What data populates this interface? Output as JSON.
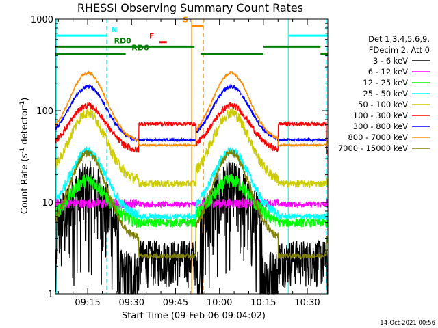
{
  "chart_data": {
    "type": "line",
    "title": "RHESSI Observing Summary Count Rates",
    "xlabel": "Start Time (09-Feb-06 09:04:02)",
    "ylabel_main": "Count Rate (s",
    "ylabel_exp1": "-1",
    "ylabel_mid": " detector",
    "ylabel_exp2": "-1",
    "ylabel_end": ")",
    "yscale": "log",
    "ylim": [
      1,
      1000
    ],
    "xlim_minutes": [
      0,
      93
    ],
    "x_ticks": [
      {
        "minute": 11,
        "label": "09:15"
      },
      {
        "minute": 26,
        "label": "09:30"
      },
      {
        "minute": 41,
        "label": "09:45"
      },
      {
        "minute": 56,
        "label": "10:00"
      },
      {
        "minute": 71,
        "label": "10:15"
      },
      {
        "minute": 86,
        "label": "10:30"
      }
    ],
    "y_ticks": [
      {
        "value": 1,
        "label": "1"
      },
      {
        "value": 10,
        "label": "10"
      },
      {
        "value": 100,
        "label": "100"
      },
      {
        "value": 1000,
        "label": "1000"
      }
    ],
    "legend_header": [
      "Det 1,3,4,5,6,9,",
      "FDecim 2, Att 0"
    ],
    "series": [
      {
        "name": "3 - 6 keV",
        "color": "#000000",
        "shape": "orbit",
        "base": 4.2,
        "amp": 0.55,
        "night_value": 1.6,
        "noise": 0.9,
        "saa_value": 2.5
      },
      {
        "name": "6 - 12 keV",
        "color": "#ff00ff",
        "shape": "flat",
        "base": 9.8,
        "amp": 0.1,
        "noise": 0.12,
        "saa_value": 9.5
      },
      {
        "name": "12 - 25 keV",
        "color": "#00ff00",
        "shape": "orbit",
        "base": 6.2,
        "amp": 0.45,
        "noise": 0.18,
        "saa_value": 6.0
      },
      {
        "name": "25 - 50 keV",
        "color": "#00ffff",
        "shape": "orbit",
        "base": 7.2,
        "amp": 0.7,
        "noise": 0.12,
        "saa_value": 7.0
      },
      {
        "name": "50 - 100 keV",
        "color": "#cccc00",
        "shape": "orbit",
        "base": 17,
        "amp": 0.75,
        "noise": 0.14,
        "saa_value": 16
      },
      {
        "name": "100 - 300 keV",
        "color": "#ff0000",
        "shape": "orbit",
        "base": 36,
        "amp": 0.5,
        "noise": 0.08,
        "saa_value": 72
      },
      {
        "name": "300 - 800 keV",
        "color": "#0000ff",
        "shape": "orbit",
        "base": 46,
        "amp": 0.6,
        "noise": 0.05,
        "saa_value": 48
      },
      {
        "name": "800 - 7000 keV",
        "color": "#ff8c00",
        "shape": "orbit",
        "base": 46,
        "amp": 0.75,
        "noise": 0.04,
        "saa_value": 42
      },
      {
        "name": "7000 - 15000 keV",
        "color": "#808000",
        "shape": "orbit",
        "base": 3.9,
        "amp": 0.95,
        "noise": 0.1,
        "saa_value": 2.6
      }
    ],
    "orbit_peaks_minutes": [
      11,
      60
    ],
    "orbit_width_minutes": 9,
    "saa_intervals_minutes": [
      [
        28.5,
        48
      ],
      [
        76,
        92.5
      ]
    ],
    "annotations": [
      {
        "label": "N",
        "color": "#00ffff",
        "kind": "bar",
        "x_start": 0,
        "x_end": 17.5,
        "level": 660,
        "label_x": 19
      },
      {
        "label": "N",
        "color": "#00ffff",
        "kind": "bar",
        "x_start": 79.5,
        "x_end": 93,
        "level": 660
      },
      {
        "label": "F",
        "color": "#ff0000",
        "kind": "bar",
        "x_start": 35.5,
        "x_end": 38,
        "level": 560,
        "label_x": 32
      },
      {
        "label": "S",
        "color": "#ff8c00",
        "kind": "bar",
        "x_start": 46.5,
        "x_end": 50.5,
        "level": 850,
        "label_x": 43.5
      },
      {
        "label": "RD0",
        "color": "#008000",
        "kind": "bar",
        "x_start": 0,
        "x_end": 23.5,
        "level": 500,
        "label_x": 20
      },
      {
        "label": "RD0",
        "color": "#008000",
        "kind": "bar",
        "x_start": 23.5,
        "x_end": 47.5,
        "level": 500
      },
      {
        "label": "RD6",
        "color": "#008000",
        "kind": "bar",
        "x_start": 0,
        "x_end": 24,
        "level": 420,
        "label_x": 26
      },
      {
        "label": "RD6",
        "color": "#008000",
        "kind": "bar",
        "x_start": 49.5,
        "x_end": 71,
        "level": 420
      },
      {
        "label": "RD0",
        "color": "#008000",
        "kind": "bar",
        "x_start": 71,
        "x_end": 90.5,
        "level": 500
      },
      {
        "label": "RD6",
        "color": "#008000",
        "kind": "bar",
        "x_start": 90.5,
        "x_end": 93,
        "level": 420
      }
    ],
    "vertical_markers": [
      {
        "minute": 0.3,
        "color": "#00ffff",
        "style": "solid"
      },
      {
        "minute": 17.5,
        "color": "#00ffff",
        "style": "dashed"
      },
      {
        "minute": 46.5,
        "color": "#ff8c00",
        "style": "solid"
      },
      {
        "minute": 50.5,
        "color": "#ff8c00",
        "style": "dashed"
      },
      {
        "minute": 79.5,
        "color": "#00ffff",
        "style": "solid"
      },
      {
        "minute": 92.5,
        "color": "#00ffff",
        "style": "dashed"
      }
    ],
    "timestamp": "14-Oct-2021 00:56",
    "grid": false,
    "legend_position": "right"
  }
}
